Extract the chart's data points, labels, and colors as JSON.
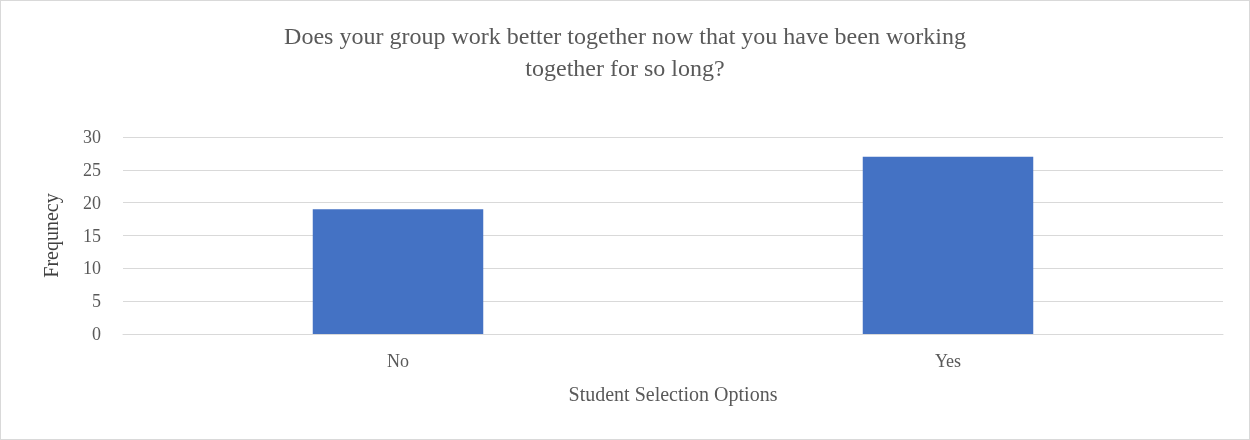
{
  "chart_data": {
    "type": "bar",
    "title": "Does your group work better together now that you have been working\ntogether for so long?",
    "xlabel": "Student Selection Options",
    "ylabel": "Frequnecy",
    "categories": [
      "No",
      "Yes"
    ],
    "values": [
      19,
      27
    ],
    "color": "#4472c4",
    "ylim": [
      0,
      30
    ],
    "yticks": [
      0,
      5,
      10,
      15,
      20,
      25,
      30
    ],
    "grid": "y"
  }
}
